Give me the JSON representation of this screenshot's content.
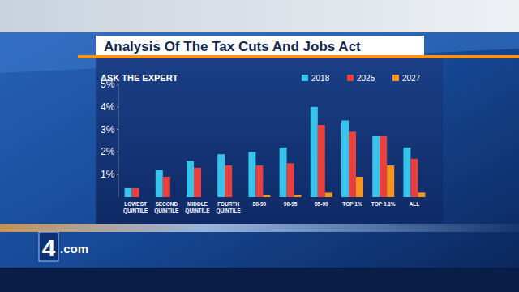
{
  "chart_data": {
    "type": "bar",
    "title": "Analysis Of The Tax Cuts And Jobs Act",
    "subtitle": "ASK THE EXPERT",
    "categories": [
      "LOWEST QUINTILE",
      "SECOND QUINTILE",
      "MIDDLE QUINTILE",
      "FOURTH QUINTILE",
      "80-90",
      "90-95",
      "95-99",
      "TOP 1%",
      "TOP 0.1%",
      "ALL"
    ],
    "series": [
      {
        "name": "2018",
        "color": "#36c3ec",
        "values": [
          0.4,
          1.2,
          1.6,
          1.9,
          2.0,
          2.2,
          4.0,
          3.4,
          2.7,
          2.2
        ]
      },
      {
        "name": "2025",
        "color": "#e8403f",
        "values": [
          0.4,
          0.9,
          1.3,
          1.4,
          1.4,
          1.5,
          3.2,
          2.9,
          2.7,
          1.7
        ]
      },
      {
        "name": "2027",
        "color": "#f7941d",
        "values": [
          0,
          0,
          0,
          0,
          0.1,
          0.1,
          0.2,
          0.9,
          1.4,
          0.2
        ]
      }
    ],
    "ylim": [
      0,
      5
    ],
    "yticks": [
      {
        "value": 1,
        "label": "1%"
      },
      {
        "value": 2,
        "label": "2%"
      },
      {
        "value": 3,
        "label": "3%"
      },
      {
        "value": 4,
        "label": "4%"
      },
      {
        "value": 5,
        "label": "5%"
      }
    ],
    "grid": false,
    "legend": "top"
  },
  "logo": {
    "number": "4",
    "text": ".com"
  }
}
